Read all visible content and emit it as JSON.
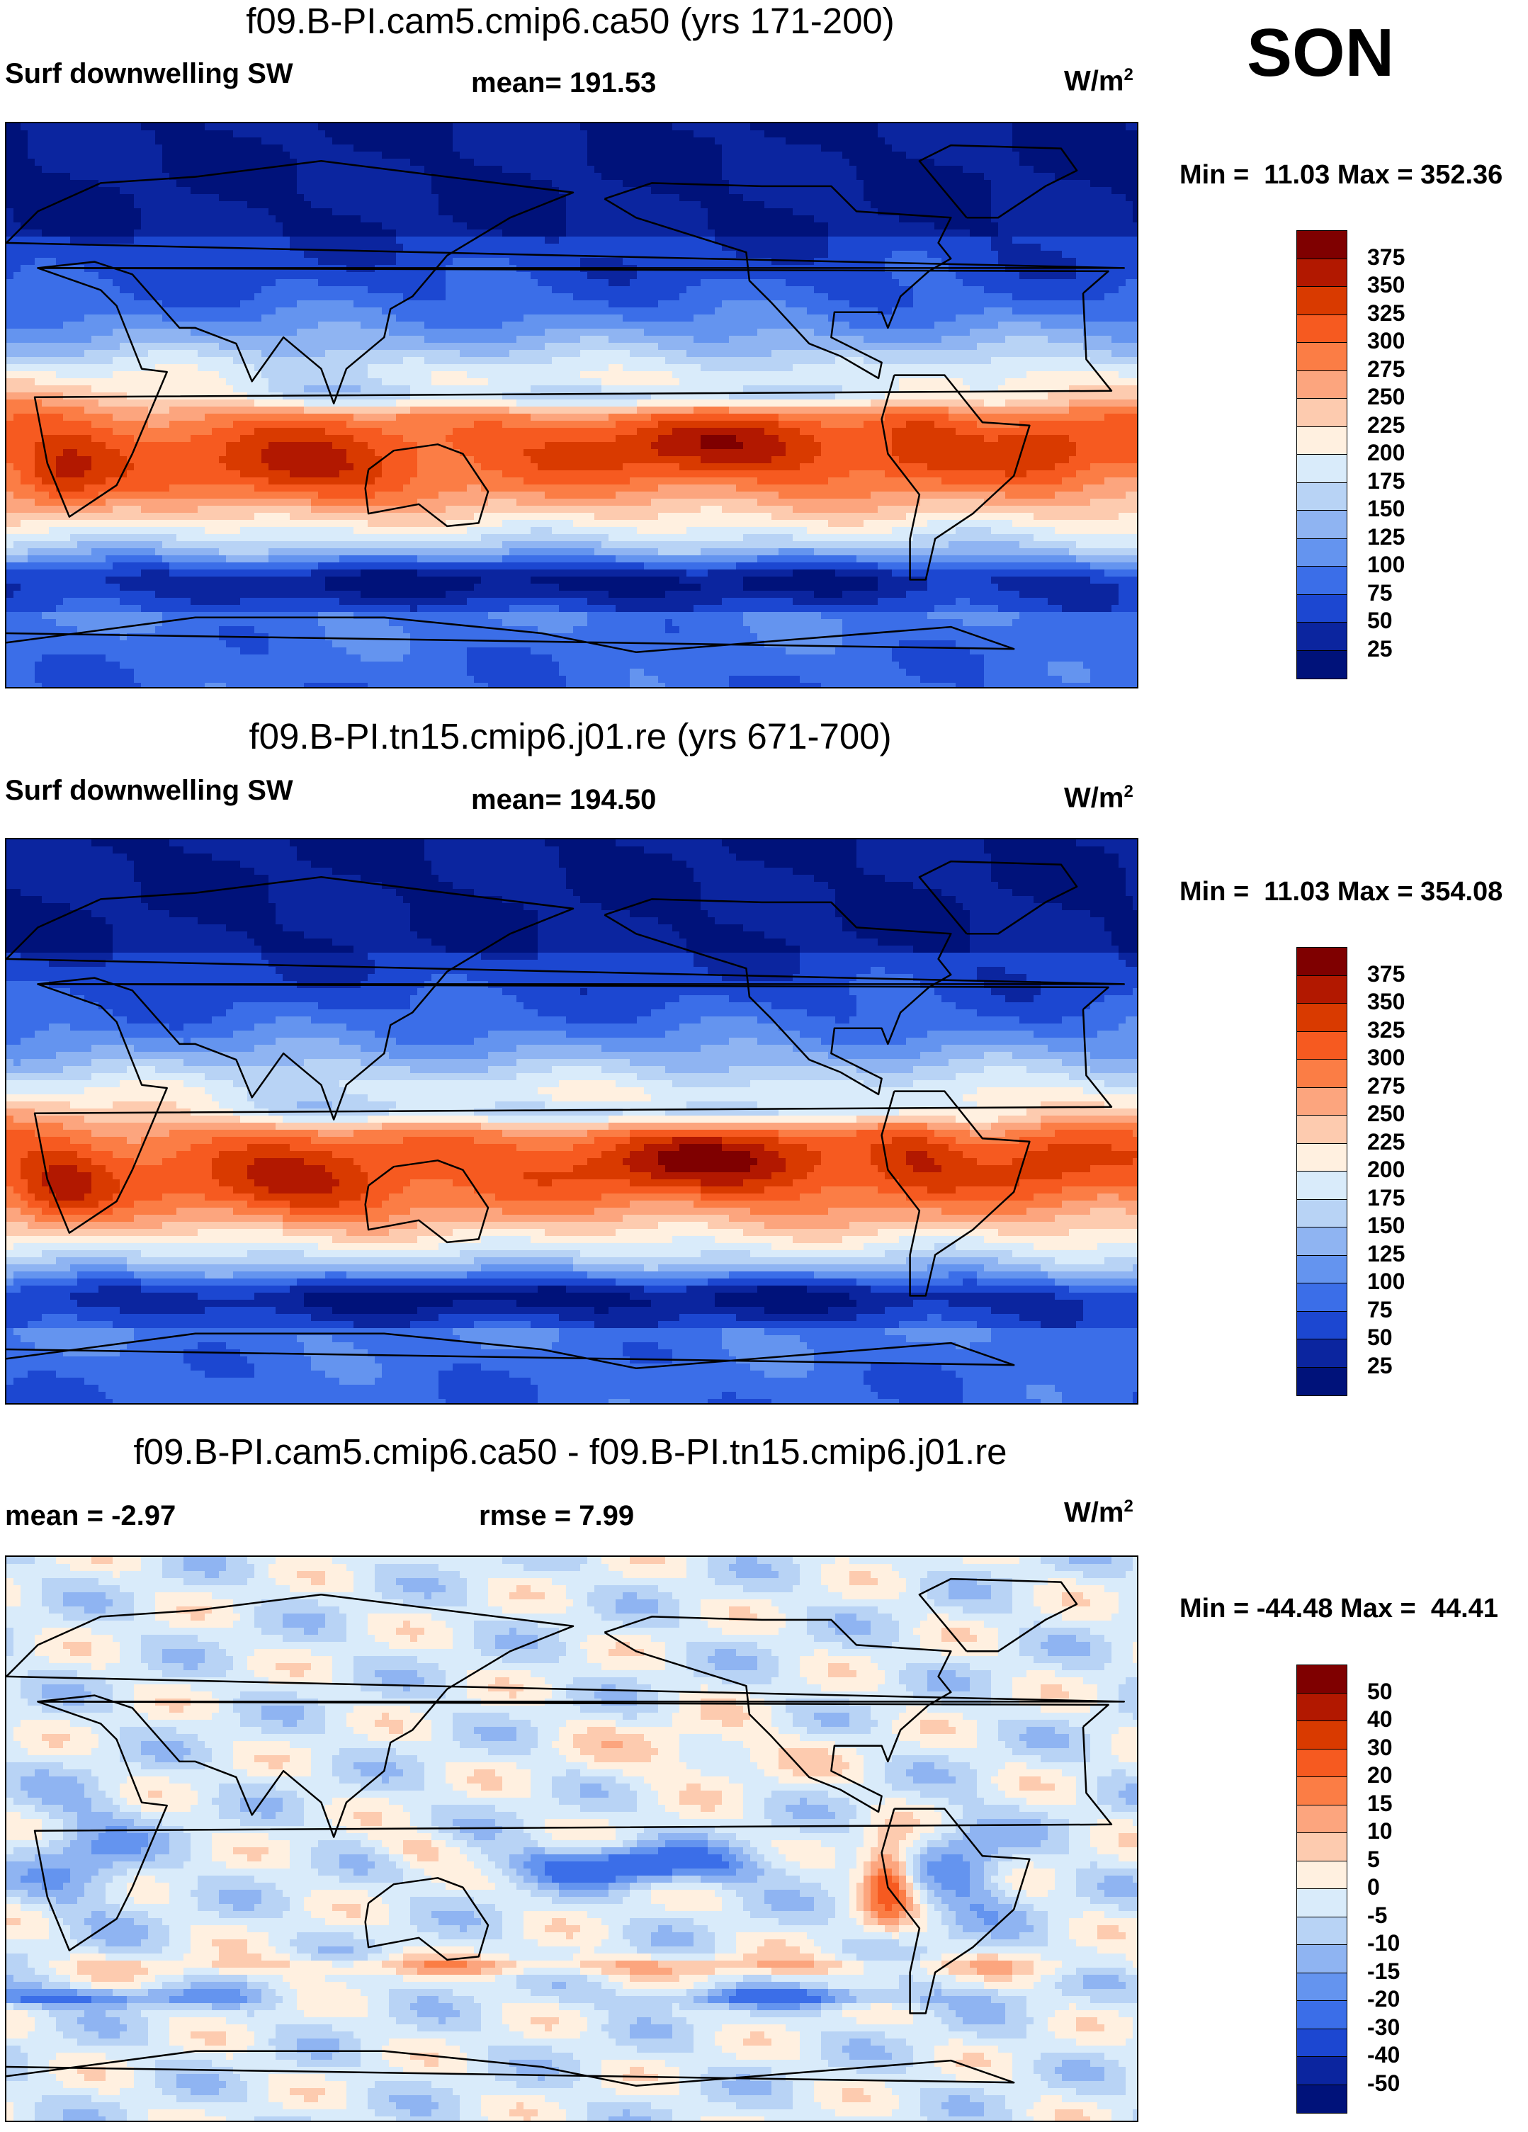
{
  "season": "SON",
  "panels": [
    {
      "title": "f09.B-PI.cam5.cmip6.ca50 (yrs 171-200)",
      "left_label": "Surf downwelling SW",
      "center_label": "mean= 191.53",
      "units": "W/m",
      "units_sup": "2",
      "minmax": "Min =  11.03 Max = 352.36"
    },
    {
      "title": "f09.B-PI.tn15.cmip6.j01.re (yrs 671-700)",
      "left_label": "Surf downwelling SW",
      "center_label": "mean= 194.50",
      "units": "W/m",
      "units_sup": "2",
      "minmax": "Min =  11.03 Max = 354.08"
    },
    {
      "title": "f09.B-PI.cam5.cmip6.ca50 - f09.B-PI.tn15.cmip6.j01.re",
      "left_label": "mean =  -2.97",
      "center_label": "rmse =    7.99",
      "units": "W/m",
      "units_sup": "2",
      "minmax": "Min = -44.48 Max =  44.41"
    }
  ],
  "chart_data": [
    {
      "type": "heatmap",
      "title": "f09.B-PI.cam5.cmip6.ca50 (yrs 171-200)",
      "variable": "Surf downwelling SW",
      "units": "W/m2",
      "mean": 191.53,
      "min": 11.03,
      "max": 352.36,
      "levels": [
        25,
        50,
        75,
        100,
        125,
        150,
        175,
        200,
        225,
        250,
        275,
        300,
        325,
        350,
        375
      ]
    },
    {
      "type": "heatmap",
      "title": "f09.B-PI.tn15.cmip6.j01.re (yrs 671-700)",
      "variable": "Surf downwelling SW",
      "units": "W/m2",
      "mean": 194.5,
      "min": 11.03,
      "max": 354.08,
      "levels": [
        25,
        50,
        75,
        100,
        125,
        150,
        175,
        200,
        225,
        250,
        275,
        300,
        325,
        350,
        375
      ]
    },
    {
      "type": "heatmap",
      "title": "f09.B-PI.cam5.cmip6.ca50 - f09.B-PI.tn15.cmip6.j01.re",
      "units": "W/m2",
      "mean": -2.97,
      "rmse": 7.99,
      "min": -44.48,
      "max": 44.41,
      "levels": [
        -50,
        -40,
        -30,
        -20,
        -15,
        -10,
        -5,
        0,
        5,
        10,
        15,
        20,
        30,
        40,
        50
      ]
    }
  ],
  "colorbars": [
    {
      "tick_labels": [
        "375",
        "350",
        "325",
        "300",
        "275",
        "250",
        "225",
        "200",
        "175",
        "150",
        "125",
        "100",
        "75",
        "50",
        "25"
      ],
      "colors": [
        "#7f0000",
        "#b21800",
        "#d93a00",
        "#f65a20",
        "#fb7d45",
        "#fca57e",
        "#fdcbaf",
        "#fff0e0",
        "#d9ebfa",
        "#b8d3f5",
        "#8fb4f2",
        "#6494ef",
        "#3b6ee8",
        "#1c47d1",
        "#0b259f",
        "#00127a"
      ]
    },
    {
      "tick_labels": [
        "375",
        "350",
        "325",
        "300",
        "275",
        "250",
        "225",
        "200",
        "175",
        "150",
        "125",
        "100",
        "75",
        "50",
        "25"
      ],
      "colors": [
        "#7f0000",
        "#b21800",
        "#d93a00",
        "#f65a20",
        "#fb7d45",
        "#fca57e",
        "#fdcbaf",
        "#fff0e0",
        "#d9ebfa",
        "#b8d3f5",
        "#8fb4f2",
        "#6494ef",
        "#3b6ee8",
        "#1c47d1",
        "#0b259f",
        "#00127a"
      ]
    },
    {
      "tick_labels": [
        "50",
        "40",
        "30",
        "20",
        "15",
        "10",
        "5",
        "0",
        "-5",
        "-10",
        "-15",
        "-20",
        "-30",
        "-40",
        "-50"
      ],
      "colors": [
        "#7f0000",
        "#b21800",
        "#d93a00",
        "#f65a20",
        "#fb7d45",
        "#fca57e",
        "#fdcbaf",
        "#fff0e0",
        "#d9ebfa",
        "#b8d3f5",
        "#8fb4f2",
        "#6494ef",
        "#3b6ee8",
        "#1c47d1",
        "#0b259f",
        "#00127a"
      ]
    }
  ]
}
